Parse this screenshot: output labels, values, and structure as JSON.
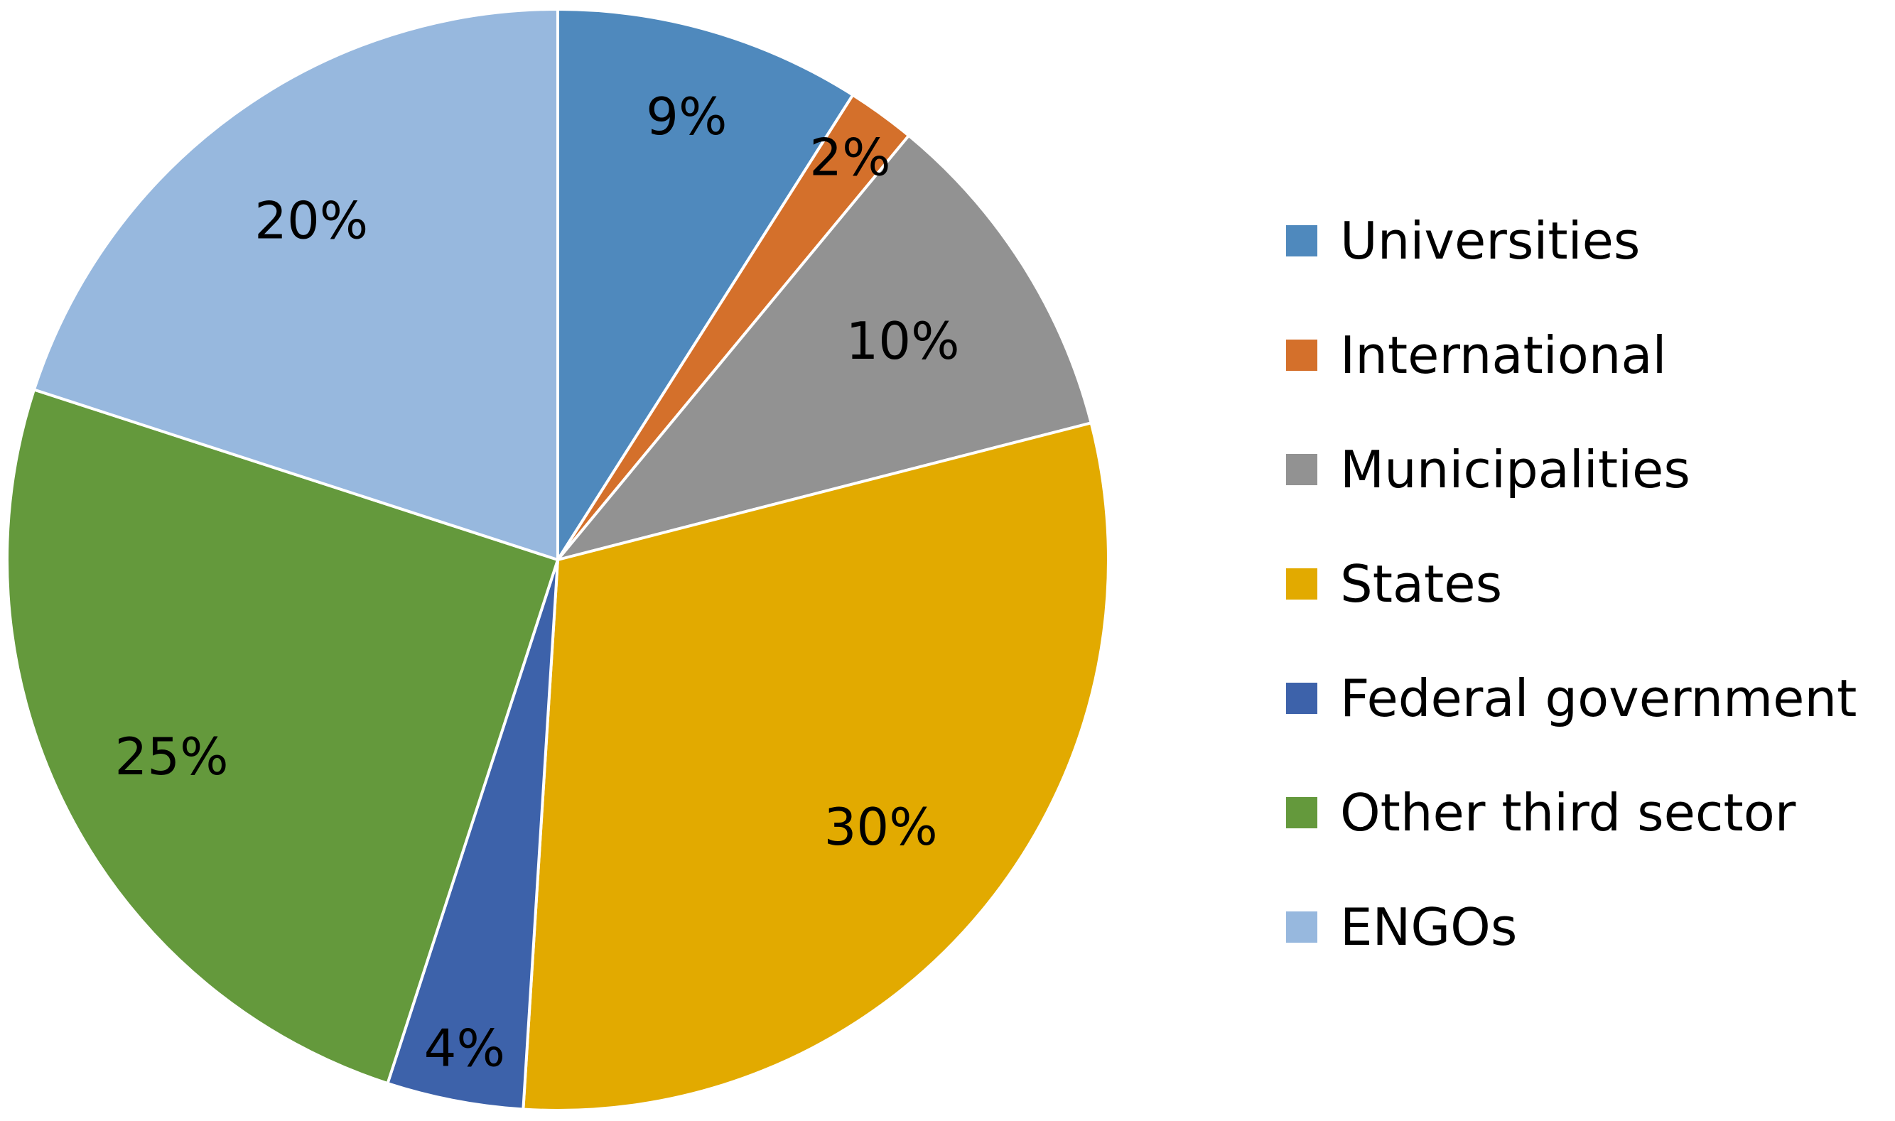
{
  "chart_data": {
    "type": "pie",
    "title": "",
    "legend_position": "right",
    "start_angle_deg": 0,
    "direction": "clockwise",
    "slices": [
      {
        "label": "Universities",
        "value": 9,
        "display": "9%",
        "color": "#4f89bd"
      },
      {
        "label": "International",
        "value": 2,
        "display": "2%",
        "color": "#d4702b"
      },
      {
        "label": "Municipalities",
        "value": 10,
        "display": "10%",
        "color": "#929292"
      },
      {
        "label": "States",
        "value": 30,
        "display": "30%",
        "color": "#e2aa00"
      },
      {
        "label": "Federal government",
        "value": 4,
        "display": "4%",
        "color": "#3d62aa"
      },
      {
        "label": "Other third sector",
        "value": 25,
        "display": "25%",
        "color": "#64993c"
      },
      {
        "label": "ENGOs",
        "value": 20,
        "display": "20%",
        "color": "#97b8de"
      }
    ]
  }
}
